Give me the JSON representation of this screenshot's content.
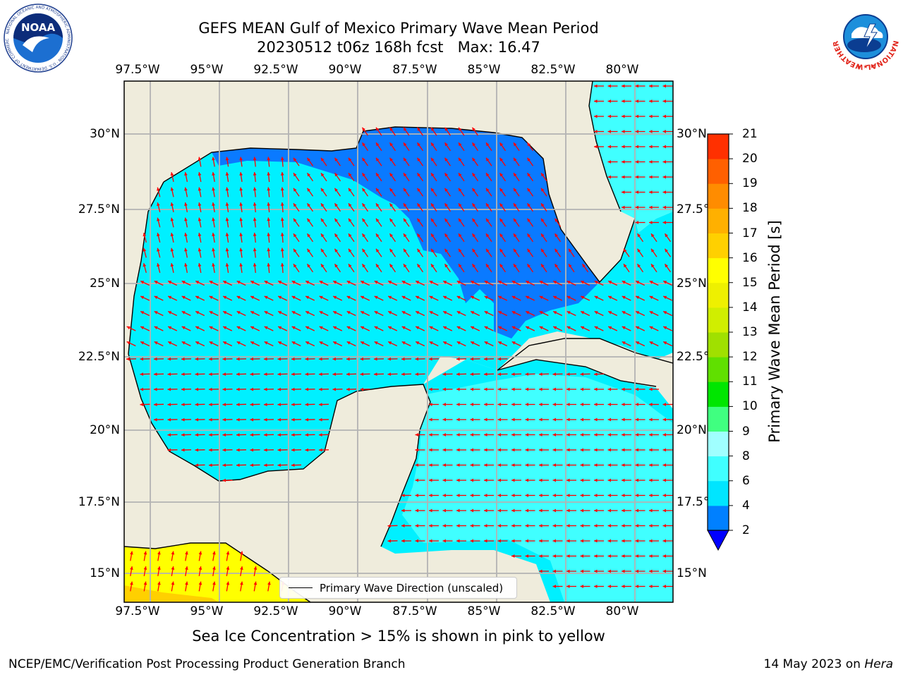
{
  "title": {
    "line1": "GEFS MEAN Gulf of Mexico Primary Wave Mean Period",
    "line2": "20230512 t06z 168h fcst   Max: 16.47"
  },
  "logos": {
    "left": "noaa-logo",
    "left_text": "NOAA",
    "left_ring": "NATIONAL OCEANIC AND ATMOSPHERIC ADMINISTRATION · U.S. DEPARTMENT OF COMMERCE",
    "right": "nws-logo",
    "right_ring": "NATIONAL WEATHER SERVICE"
  },
  "map": {
    "lon_labels": [
      "97.5°W",
      "95°W",
      "92.5°W",
      "90°W",
      "87.5°W",
      "85°W",
      "82.5°W",
      "80°W"
    ],
    "lat_labels": [
      "30°N",
      "27.5°N",
      "25°N",
      "22.5°N",
      "20°N",
      "17.5°N",
      "15°N"
    ],
    "colors": {
      "land": "#efecdc",
      "coastline": "#000000",
      "grid": "#b3b3b3",
      "arrow": "#ff0000"
    },
    "legend_label": "Primary Wave Direction (unscaled)"
  },
  "colorbar": {
    "title": "Primary Wave Mean Period [s]",
    "ticks": [
      "2",
      "4",
      "6",
      "8",
      "9",
      "10",
      "11",
      "12",
      "13",
      "14",
      "15",
      "16",
      "17",
      "18",
      "19",
      "20",
      "21"
    ],
    "colors": [
      "#0080ff",
      "#00e5ff",
      "#40ffff",
      "#a0ffff",
      "#40ff80",
      "#00e600",
      "#60e000",
      "#a0e000",
      "#d0ee00",
      "#eef000",
      "#ffff00",
      "#ffd000",
      "#ffb000",
      "#ff8c00",
      "#ff6000",
      "#ff3000",
      "#ff0000"
    ],
    "under_color": "#0000ff"
  },
  "subtitle": "Sea Ice Concentration > 15% is shown in pink to yellow",
  "footer": {
    "left": "NCEP/EMC/Verification Post Processing Product Generation Branch",
    "date": "14 May 2023 on",
    "host": "Hera"
  }
}
